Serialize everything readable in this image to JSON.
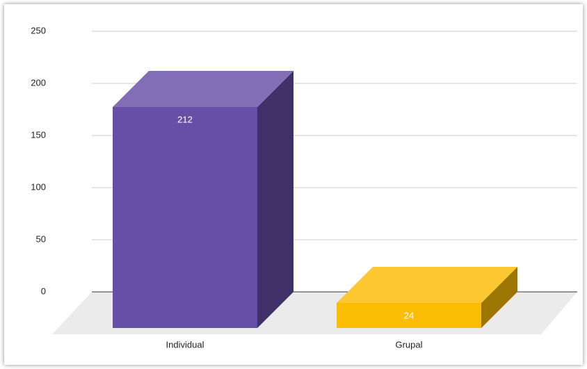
{
  "chart_data": {
    "type": "bar3d",
    "categories": [
      "Individual",
      "Grupal"
    ],
    "values": [
      212,
      24
    ],
    "colors": [
      "#674ea7",
      "#fbbc04"
    ],
    "ylim": [
      0,
      250
    ],
    "yticks": [
      0,
      50,
      100,
      150,
      200,
      250
    ],
    "grid": true
  }
}
